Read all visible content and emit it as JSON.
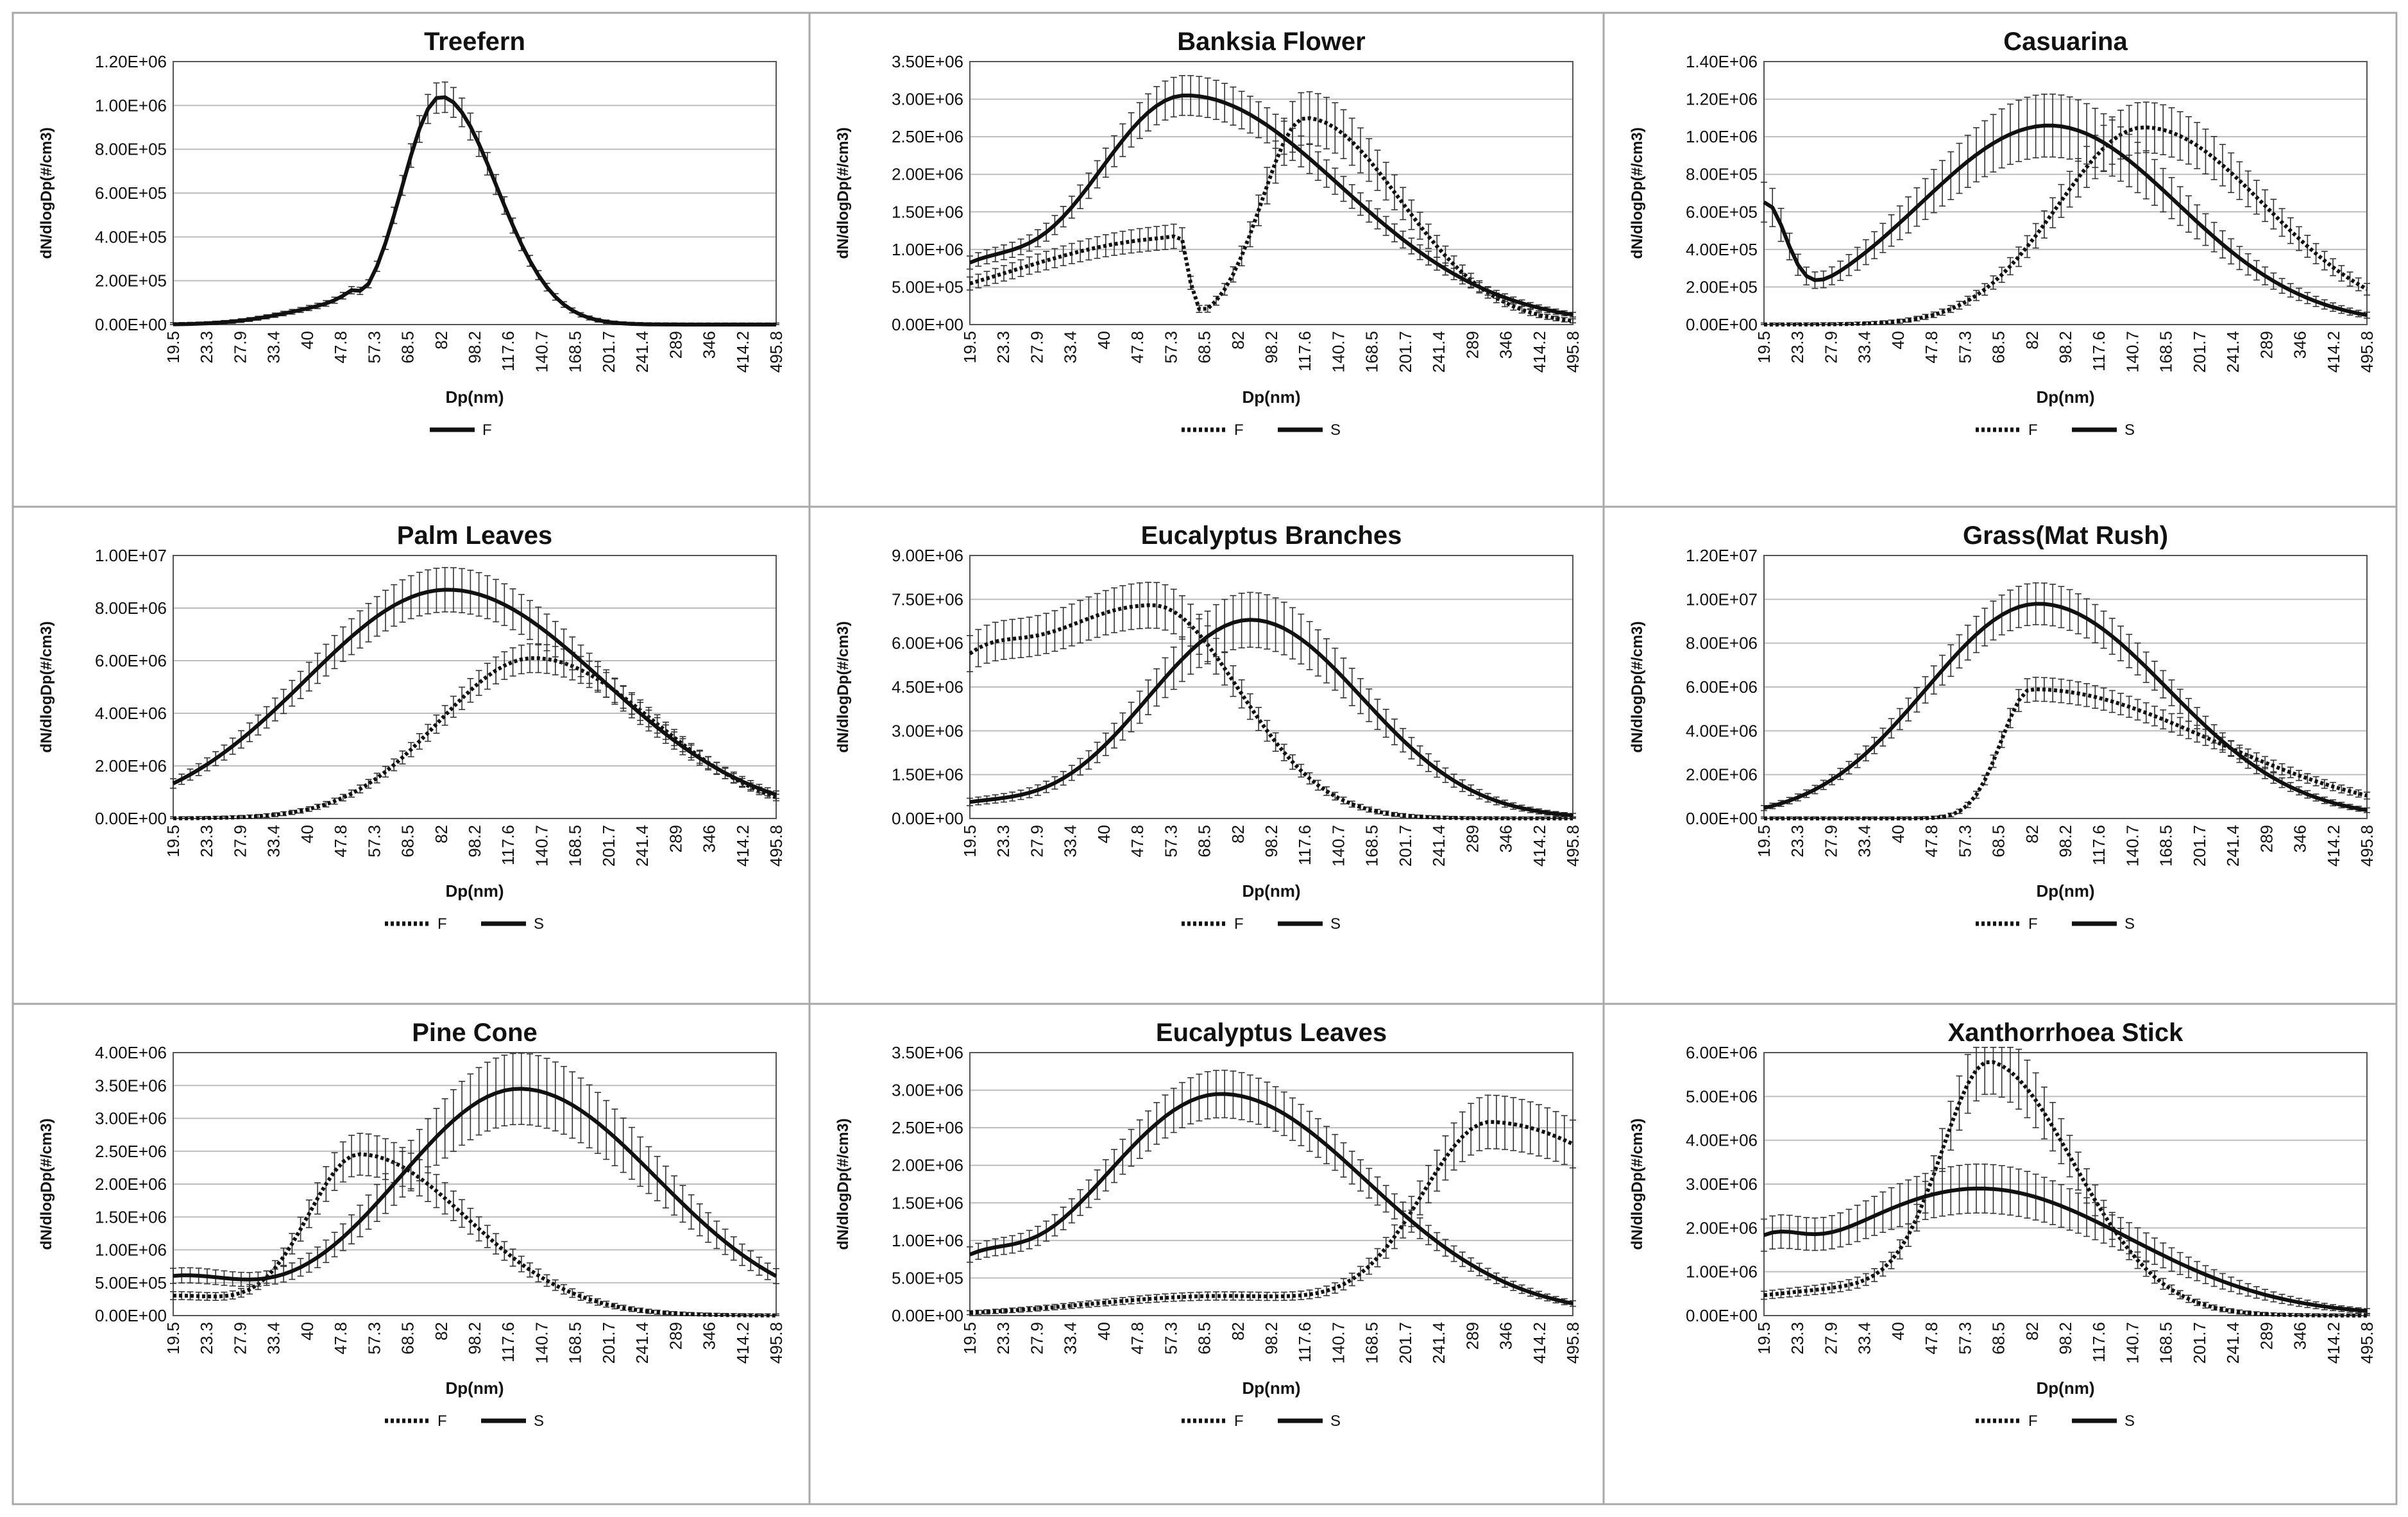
{
  "figure": {
    "x_tick_labels": [
      "19.5",
      "23.3",
      "27.9",
      "33.4",
      "40",
      "47.8",
      "57.3",
      "68.5",
      "82",
      "98.2",
      "117.6",
      "140.7",
      "168.5",
      "201.7",
      "241.4",
      "289",
      "346",
      "414.2",
      "495.8"
    ],
    "xlabel": "Dp(nm)",
    "ylabel": "dN/dlogDp(#/cm3)",
    "series_colors": {
      "F": "#111111",
      "S": "#111111"
    }
  },
  "chart_data": [
    {
      "type": "line",
      "title": "Treefern",
      "ylim": [
        0,
        1200000
      ],
      "y_tick_labels": [
        "0.00E+00",
        "2.00E+05",
        "4.00E+05",
        "6.00E+05",
        "8.00E+05",
        "1.00E+06",
        "1.20E+06"
      ],
      "legend": [
        "F"
      ],
      "series": [
        {
          "name": "F",
          "style": "solid",
          "peaks": [
            {
              "center": 82,
              "amp": 1040000,
              "wl": 0.09,
              "wr": 0.13
            }
          ],
          "baseline": [
            {
              "center": 50,
              "amp": 90000,
              "wl": 0.14,
              "wr": 0.02
            }
          ],
          "err": 0.06
        }
      ]
    },
    {
      "type": "line",
      "title": "Banksia Flower",
      "ylim": [
        0,
        3500000
      ],
      "y_tick_labels": [
        "0.00E+00",
        "5.00E+05",
        "1.00E+06",
        "1.50E+06",
        "2.00E+06",
        "2.50E+06",
        "3.00E+06",
        "3.50E+06"
      ],
      "legend": [
        "F",
        "S"
      ],
      "series": [
        {
          "name": "F",
          "style": "dotted",
          "peaks": [
            {
              "center": 118,
              "amp": 2750000,
              "wl": 0.1,
              "wr": 0.22
            }
          ],
          "baseline": [
            {
              "center": 60,
              "amp": 1150000,
              "wl": 0.4,
              "wr": 0.02
            }
          ],
          "err": 0.12
        },
        {
          "name": "S",
          "style": "solid",
          "peaks": [
            {
              "center": 62,
              "amp": 3050000,
              "wl": 0.22,
              "wr": 0.36
            }
          ],
          "baseline": [
            {
              "center": 19.5,
              "amp": 600000,
              "wl": 0.5,
              "wr": 0.12
            }
          ],
          "err": 0.08
        }
      ]
    },
    {
      "type": "line",
      "title": "Casuarina",
      "ylim": [
        0,
        1400000
      ],
      "y_tick_labels": [
        "0.00E+00",
        "2.00E+05",
        "4.00E+05",
        "6.00E+05",
        "8.00E+05",
        "1.00E+06",
        "1.20E+06",
        "1.40E+06"
      ],
      "legend": [
        "F",
        "S"
      ],
      "series": [
        {
          "name": "F",
          "style": "dotted",
          "peaks": [
            {
              "center": 150,
              "amp": 1050000,
              "wl": 0.2,
              "wr": 0.28
            }
          ],
          "baseline": [],
          "err": 0.12
        },
        {
          "name": "S",
          "style": "solid",
          "peaks": [
            {
              "center": 90,
              "amp": 1060000,
              "wl": 0.3,
              "wr": 0.3
            }
          ],
          "baseline": [
            {
              "center": 19.5,
              "amp": 560000,
              "wl": 0.5,
              "wr": 0.05
            }
          ],
          "err": 0.15
        }
      ]
    },
    {
      "type": "line",
      "title": "Palm Leaves",
      "ylim": [
        0,
        10000000
      ],
      "y_tick_labels": [
        "0.00E+00",
        "2.00E+06",
        "4.00E+06",
        "6.00E+06",
        "8.00E+06",
        "1.00E+07"
      ],
      "legend": [
        "F",
        "S"
      ],
      "series": [
        {
          "name": "F",
          "style": "dotted",
          "peaks": [
            {
              "center": 135,
              "amp": 6100000,
              "wl": 0.22,
              "wr": 0.28
            }
          ],
          "baseline": [],
          "err": 0.08
        },
        {
          "name": "S",
          "style": "solid",
          "peaks": [
            {
              "center": 85,
              "amp": 8700000,
              "wl": 0.33,
              "wr": 0.36
            }
          ],
          "baseline": [],
          "err": 0.09
        }
      ]
    },
    {
      "type": "line",
      "title": "Eucalyptus Branches",
      "ylim": [
        0,
        9000000
      ],
      "y_tick_labels": [
        "0.00E+00",
        "1.50E+06",
        "3.00E+06",
        "4.50E+06",
        "6.00E+06",
        "7.50E+06",
        "9.00E+06"
      ],
      "legend": [
        "F",
        "S"
      ],
      "series": [
        {
          "name": "F",
          "style": "dotted",
          "peaks": [
            {
              "center": 52,
              "amp": 7300000,
              "wl": 0.4,
              "wr": 0.2
            }
          ],
          "baseline": [
            {
              "center": 19.5,
              "amp": 1500000,
              "wl": 0.5,
              "wr": 0.1
            }
          ],
          "err": 0.1
        },
        {
          "name": "S",
          "style": "solid",
          "peaks": [
            {
              "center": 88,
              "amp": 6800000,
              "wl": 0.24,
              "wr": 0.26
            }
          ],
          "baseline": [
            {
              "center": 19.5,
              "amp": 400000,
              "wl": 0.5,
              "wr": 0.12
            }
          ],
          "err": 0.13
        }
      ]
    },
    {
      "type": "line",
      "title": "Grass(Mat Rush)",
      "ylim": [
        0,
        12000000
      ],
      "y_tick_labels": [
        "0.00E+00",
        "2.00E+06",
        "4.00E+06",
        "6.00E+06",
        "8.00E+06",
        "1.00E+07",
        "1.20E+07"
      ],
      "legend": [
        "F",
        "S"
      ],
      "series": [
        {
          "name": "F",
          "style": "dotted",
          "peaks": [
            {
              "center": 82,
              "amp": 5900000,
              "wl": 0.07,
              "wr": 0.42
            }
          ],
          "baseline": [],
          "err": 0.08
        },
        {
          "name": "S",
          "style": "solid",
          "peaks": [
            {
              "center": 85,
              "amp": 9800000,
              "wl": 0.26,
              "wr": 0.3
            }
          ],
          "baseline": [],
          "err": 0.09
        }
      ]
    },
    {
      "type": "line",
      "title": "Pine Cone",
      "ylim": [
        0,
        4000000
      ],
      "y_tick_labels": [
        "0.00E+00",
        "5.00E+05",
        "1.00E+06",
        "1.50E+06",
        "2.00E+06",
        "2.50E+06",
        "3.00E+06",
        "3.50E+06",
        "4.00E+06"
      ],
      "legend": [
        "F",
        "S"
      ],
      "series": [
        {
          "name": "F",
          "style": "dotted",
          "peaks": [
            {
              "center": 53,
              "amp": 2450000,
              "wl": 0.12,
              "wr": 0.25
            }
          ],
          "baseline": [
            {
              "center": 19.5,
              "amp": 300000,
              "wl": 0.5,
              "wr": 0.15
            }
          ],
          "err": 0.12
        },
        {
          "name": "S",
          "style": "solid",
          "peaks": [
            {
              "center": 125,
              "amp": 3450000,
              "wl": 0.28,
              "wr": 0.32
            }
          ],
          "baseline": [
            {
              "center": 19.5,
              "amp": 550000,
              "wl": 0.5,
              "wr": 0.15
            }
          ],
          "err": 0.15
        }
      ]
    },
    {
      "type": "line",
      "title": "Eucalyptus Leaves",
      "ylim": [
        0,
        3500000
      ],
      "y_tick_labels": [
        "0.00E+00",
        "5.00E+05",
        "1.00E+06",
        "1.50E+06",
        "2.00E+06",
        "2.50E+06",
        "3.00E+06",
        "3.50E+06"
      ],
      "legend": [
        "F",
        "S"
      ],
      "series": [
        {
          "name": "F",
          "style": "dotted",
          "peaks": [
            {
              "center": 320,
              "amp": 2550000,
              "wl": 0.16,
              "wr": 0.4
            }
          ],
          "baseline": [
            {
              "center": 75,
              "amp": 260000,
              "wl": 0.3,
              "wr": 0.3
            }
          ],
          "err": 0.13
        },
        {
          "name": "S",
          "style": "solid",
          "peaks": [
            {
              "center": 75,
              "amp": 2950000,
              "wl": 0.28,
              "wr": 0.34
            }
          ],
          "baseline": [
            {
              "center": 19.5,
              "amp": 480000,
              "wl": 0.5,
              "wr": 0.1
            }
          ],
          "err": 0.1
        }
      ]
    },
    {
      "type": "line",
      "title": "Xanthorrhoea Stick",
      "ylim": [
        0,
        6000000
      ],
      "y_tick_labels": [
        "0.00E+00",
        "1.00E+06",
        "2.00E+06",
        "3.00E+06",
        "4.00E+06",
        "5.00E+06",
        "6.00E+06"
      ],
      "legend": [
        "F",
        "S"
      ],
      "series": [
        {
          "name": "F",
          "style": "dotted",
          "peaks": [
            {
              "center": 66,
              "amp": 5300000,
              "wl": 0.11,
              "wr": 0.2
            }
          ],
          "baseline": [
            {
              "center": 45,
              "amp": 700000,
              "wl": 0.4,
              "wr": 0.2
            }
          ],
          "err": 0.12
        },
        {
          "name": "S",
          "style": "solid",
          "peaks": [
            {
              "center": 62,
              "amp": 2900000,
              "wl": 0.35,
              "wr": 0.35
            }
          ],
          "baseline": [
            {
              "center": 19.5,
              "amp": 800000,
              "wl": 0.5,
              "wr": 0.08
            }
          ],
          "err": 0.18
        }
      ]
    }
  ]
}
